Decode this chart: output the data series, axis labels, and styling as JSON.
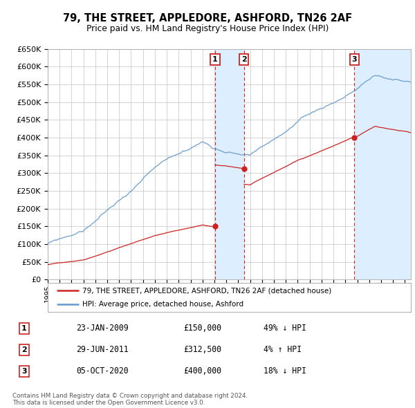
{
  "title": "79, THE STREET, APPLEDORE, ASHFORD, TN26 2AF",
  "subtitle": "Price paid vs. HM Land Registry's House Price Index (HPI)",
  "footer_line1": "Contains HM Land Registry data © Crown copyright and database right 2024.",
  "footer_line2": "This data is licensed under the Open Government Licence v3.0.",
  "legend_line1": "79, THE STREET, APPLEDORE, ASHFORD, TN26 2AF (detached house)",
  "legend_line2": "HPI: Average price, detached house, Ashford",
  "transactions": [
    {
      "num": 1,
      "date": "23-JAN-2009",
      "price": "£150,000",
      "hpi": "49% ↓ HPI",
      "year": 2009.06
    },
    {
      "num": 2,
      "date": "29-JUN-2011",
      "price": "£312,500",
      "hpi": "4% ↑ HPI",
      "year": 2011.49
    },
    {
      "num": 3,
      "date": "05-OCT-2020",
      "price": "£400,000",
      "hpi": "18% ↓ HPI",
      "year": 2020.76
    }
  ],
  "sale_prices": [
    150000,
    312500,
    400000
  ],
  "sale_years": [
    2009.06,
    2011.49,
    2020.76
  ],
  "ylim": [
    0,
    650000
  ],
  "xlim_start": 1995,
  "xlim_end": 2025.5,
  "background_color": "#ffffff",
  "plot_bg_color": "#ffffff",
  "grid_color": "#cccccc",
  "hpi_line_color": "#6699cc",
  "sale_line_color": "#cc2222",
  "highlight_color": "#ddeeff"
}
